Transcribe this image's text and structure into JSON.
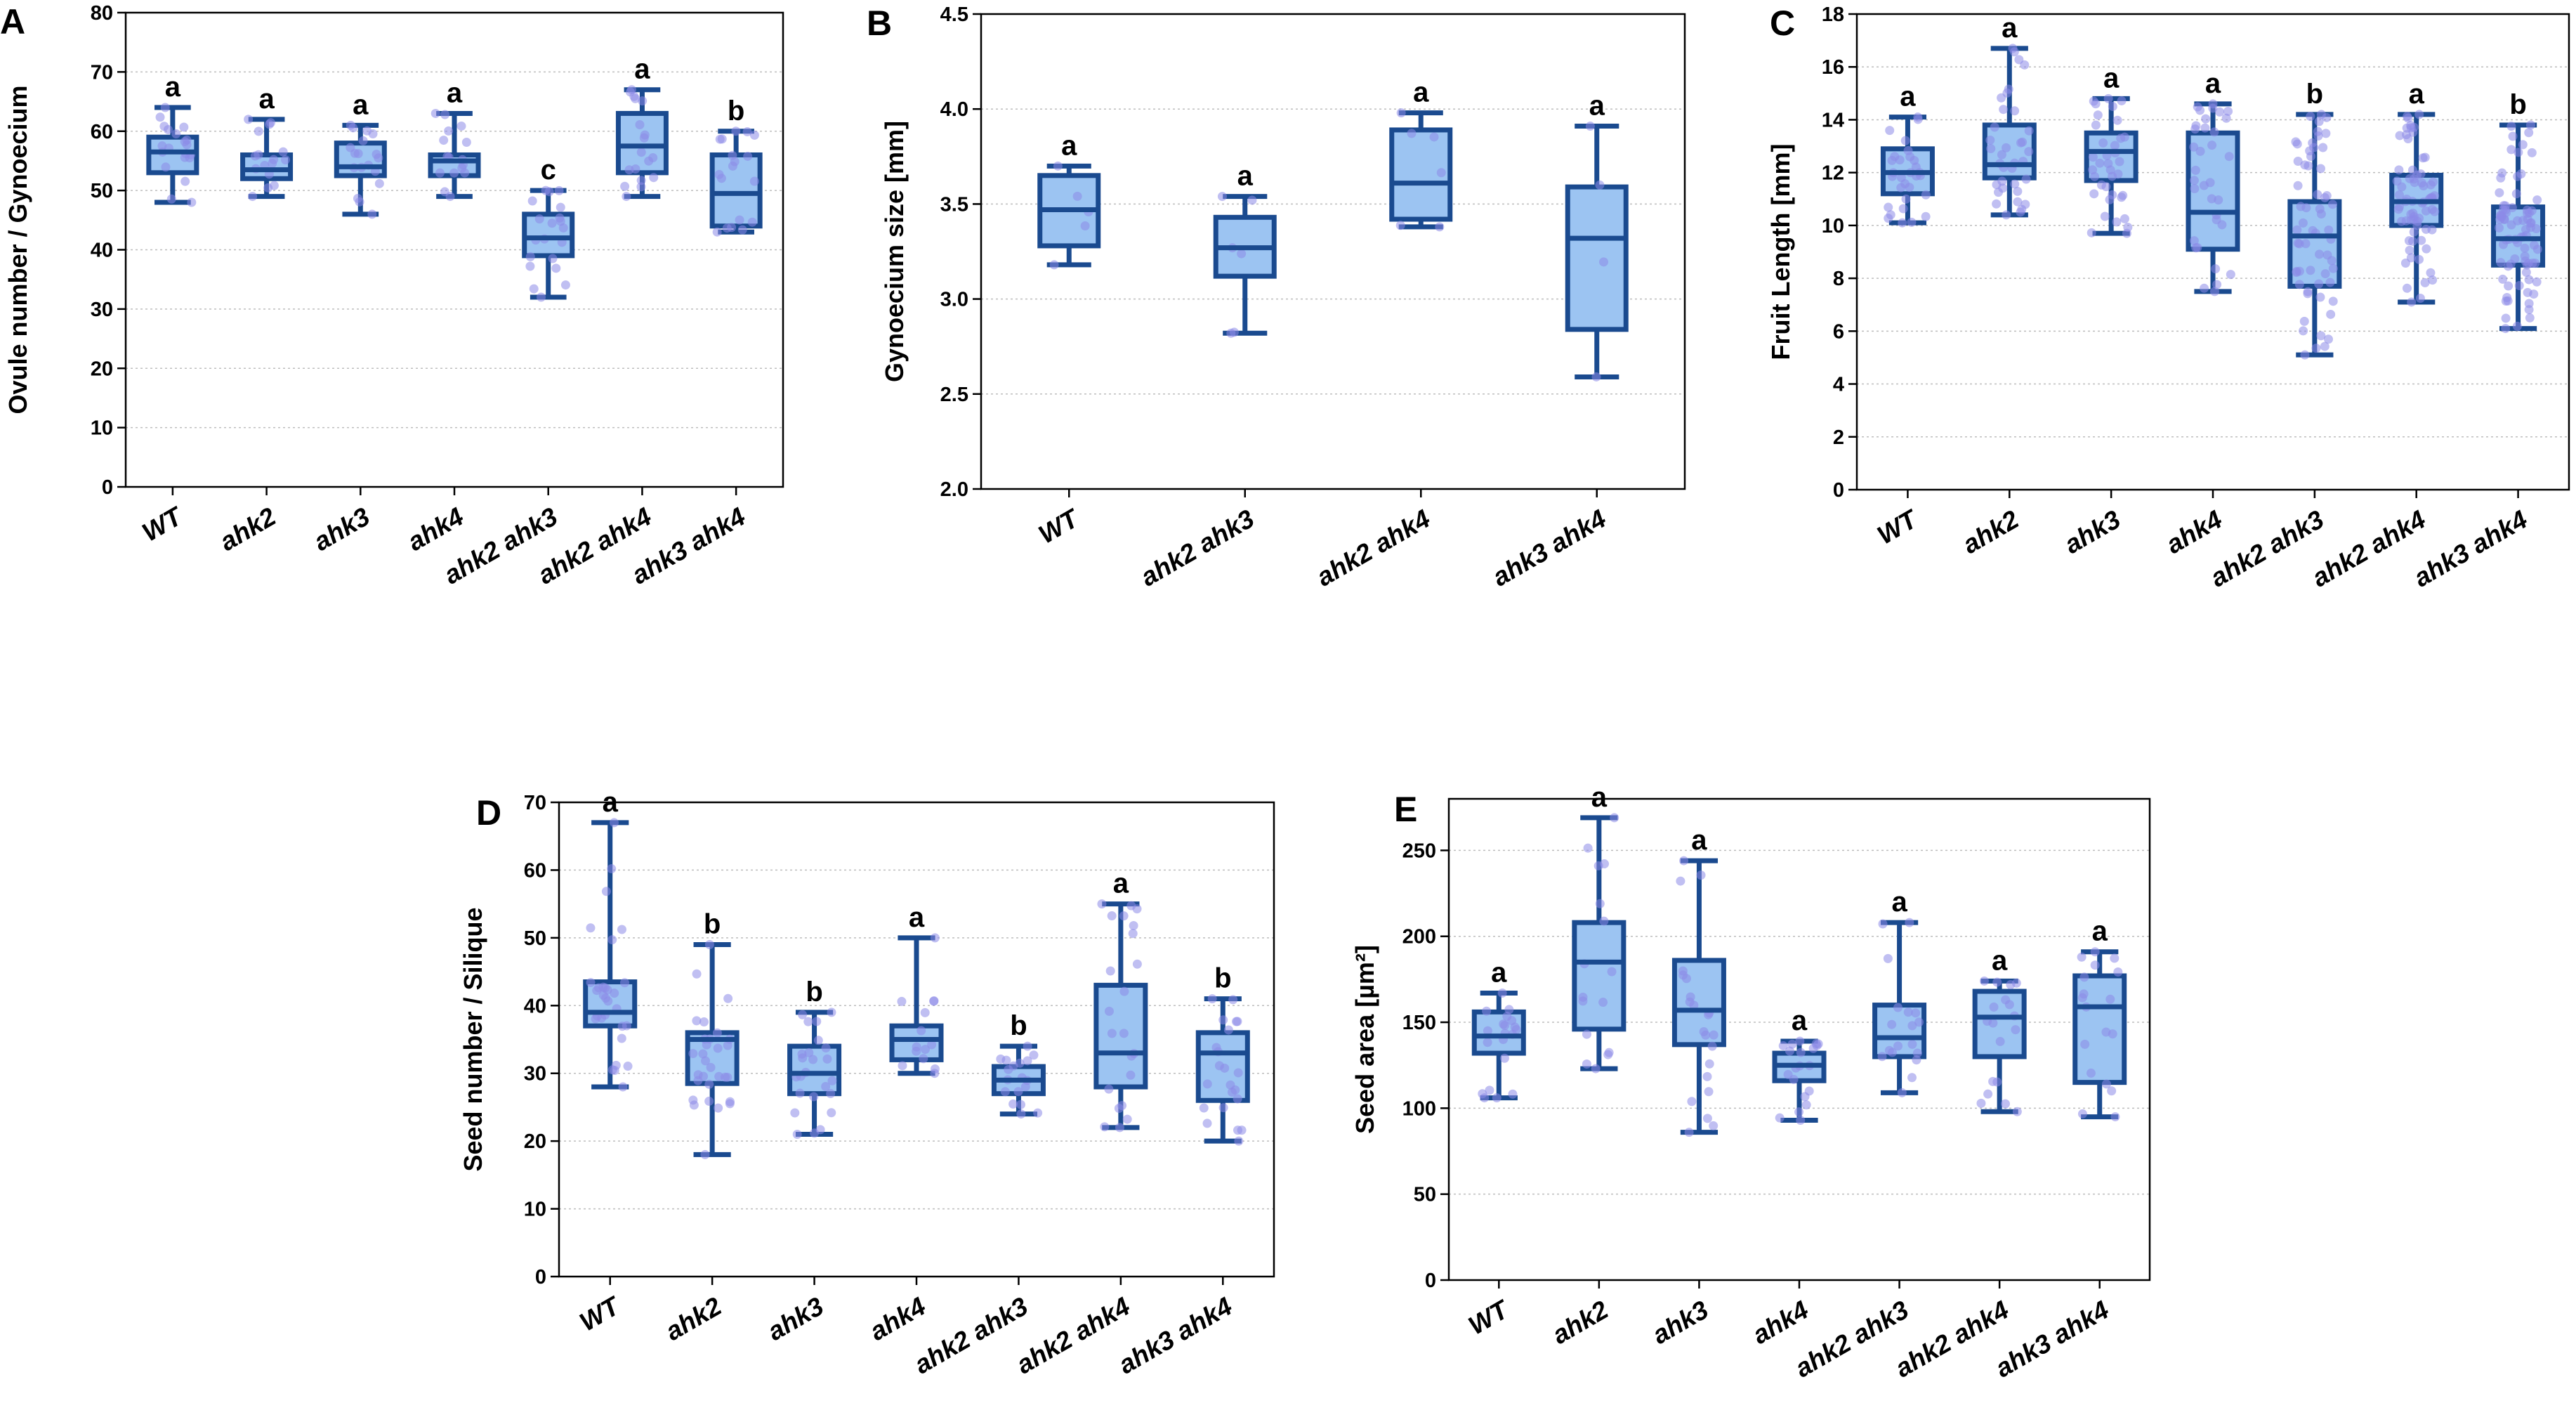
{
  "colors": {
    "box_fill": "#9cc4f2",
    "box_stroke": "#1a4a8f",
    "points": "#8d8be8"
  },
  "chart_data": [
    {
      "panel": "A",
      "type": "box",
      "ylabel": "Ovule number / Gynoecium",
      "ylim": [
        0,
        80
      ],
      "yticks": [
        0,
        10,
        20,
        30,
        40,
        50,
        60,
        70,
        80
      ],
      "ytick_decimals": 0,
      "grid": true,
      "categories": [
        "WT",
        "ahk2",
        "ahk3",
        "ahk4",
        "ahk2 ahk3",
        "ahk2 ahk4",
        "ahk3 ahk4"
      ],
      "min": [
        48,
        49,
        46,
        49,
        32,
        49,
        43
      ],
      "q1": [
        53,
        52,
        52.5,
        52.5,
        39,
        53,
        44
      ],
      "median": [
        56.5,
        53.5,
        54,
        55,
        42,
        57.5,
        49.5
      ],
      "q3": [
        59,
        56,
        58,
        56,
        46,
        63,
        56
      ],
      "max": [
        64,
        62,
        61,
        63,
        50,
        67,
        60
      ],
      "n": [
        20,
        16,
        18,
        16,
        20,
        18,
        18
      ],
      "letters": [
        "a",
        "a",
        "a",
        "a",
        "c",
        "a",
        "b"
      ]
    },
    {
      "panel": "B",
      "type": "box",
      "ylabel": "Gynoecium size [mm]",
      "ylim": [
        2.0,
        4.5
      ],
      "yticks": [
        2.0,
        2.5,
        3.0,
        3.5,
        4.0,
        4.5
      ],
      "ytick_decimals": 1,
      "grid": true,
      "categories": [
        "WT",
        "ahk2 ahk3",
        "ahk2 ahk4",
        "ahk3 ahk4"
      ],
      "min": [
        3.18,
        2.82,
        3.38,
        2.59
      ],
      "q1": [
        3.28,
        3.12,
        3.42,
        2.84
      ],
      "median": [
        3.47,
        3.27,
        3.61,
        3.32
      ],
      "q3": [
        3.65,
        3.43,
        3.89,
        3.59
      ],
      "max": [
        3.7,
        3.54,
        3.98,
        3.91
      ],
      "n": [
        5,
        6,
        6,
        4
      ],
      "letters": [
        "a",
        "a",
        "a",
        "a"
      ]
    },
    {
      "panel": "C",
      "type": "box",
      "ylabel": "Fruit Length [mm]",
      "ylim": [
        0,
        18
      ],
      "yticks": [
        0,
        2,
        4,
        6,
        8,
        10,
        12,
        14,
        16,
        18
      ],
      "ytick_decimals": 0,
      "grid": true,
      "categories": [
        "WT",
        "ahk2",
        "ahk3",
        "ahk4",
        "ahk2 ahk3",
        "ahk2 ahk4",
        "ahk3 ahk4"
      ],
      "min": [
        10.1,
        10.4,
        9.7,
        7.5,
        5.1,
        7.1,
        6.1
      ],
      "q1": [
        11.2,
        11.8,
        11.7,
        9.1,
        7.7,
        10.0,
        8.5
      ],
      "median": [
        12.0,
        12.3,
        12.8,
        10.5,
        9.6,
        10.9,
        9.5
      ],
      "q3": [
        12.9,
        13.8,
        13.5,
        13.5,
        10.9,
        11.9,
        10.7
      ],
      "max": [
        14.1,
        16.7,
        14.8,
        14.6,
        14.2,
        14.2,
        13.8
      ],
      "n": [
        30,
        36,
        36,
        34,
        60,
        70,
        80
      ],
      "letters": [
        "a",
        "a",
        "a",
        "a",
        "b",
        "a",
        "b"
      ]
    },
    {
      "panel": "D",
      "type": "box",
      "ylabel": "Seed number / Silique",
      "ylim": [
        0,
        70
      ],
      "yticks": [
        0,
        10,
        20,
        30,
        40,
        50,
        60,
        70
      ],
      "ytick_decimals": 0,
      "grid": true,
      "categories": [
        "WT",
        "ahk2",
        "ahk3",
        "ahk4",
        "ahk2 ahk3",
        "ahk2 ahk4",
        "ahk3 ahk4"
      ],
      "min": [
        28,
        18,
        21,
        30,
        24,
        22,
        20
      ],
      "q1": [
        37,
        28.5,
        27,
        32,
        27,
        28,
        26
      ],
      "median": [
        39,
        35,
        30,
        35,
        29,
        33,
        33
      ],
      "q3": [
        43.5,
        36,
        34,
        37,
        31,
        43,
        36
      ],
      "max": [
        67,
        49,
        39,
        50,
        34,
        55,
        41
      ],
      "n": [
        30,
        30,
        24,
        14,
        18,
        22,
        22
      ],
      "letters": [
        "a",
        "b",
        "b",
        "a",
        "b",
        "a",
        "b"
      ]
    },
    {
      "panel": "E",
      "type": "box",
      "ylabel": "Seed area [µm²]",
      "ylim": [
        0,
        280
      ],
      "yticks": [
        0,
        50,
        100,
        150,
        200,
        250
      ],
      "ytick_decimals": 0,
      "grid": true,
      "categories": [
        "WT",
        "ahk2",
        "ahk3",
        "ahk4",
        "ahk2 ahk3",
        "ahk2 ahk4",
        "ahk3 ahk4"
      ],
      "min": [
        106,
        123,
        86,
        93,
        109,
        98,
        95
      ],
      "q1": [
        132,
        146,
        137,
        116,
        130,
        130,
        115
      ],
      "median": [
        142,
        185,
        157,
        125,
        141,
        153,
        159
      ],
      "q3": [
        156,
        208,
        186,
        132,
        160,
        168,
        177
      ],
      "max": [
        167,
        269,
        244,
        139,
        208,
        174,
        191
      ],
      "n": [
        20,
        16,
        22,
        20,
        18,
        18,
        18
      ],
      "letters": [
        "a",
        "a",
        "a",
        "a",
        "a",
        "a",
        "a"
      ]
    }
  ]
}
